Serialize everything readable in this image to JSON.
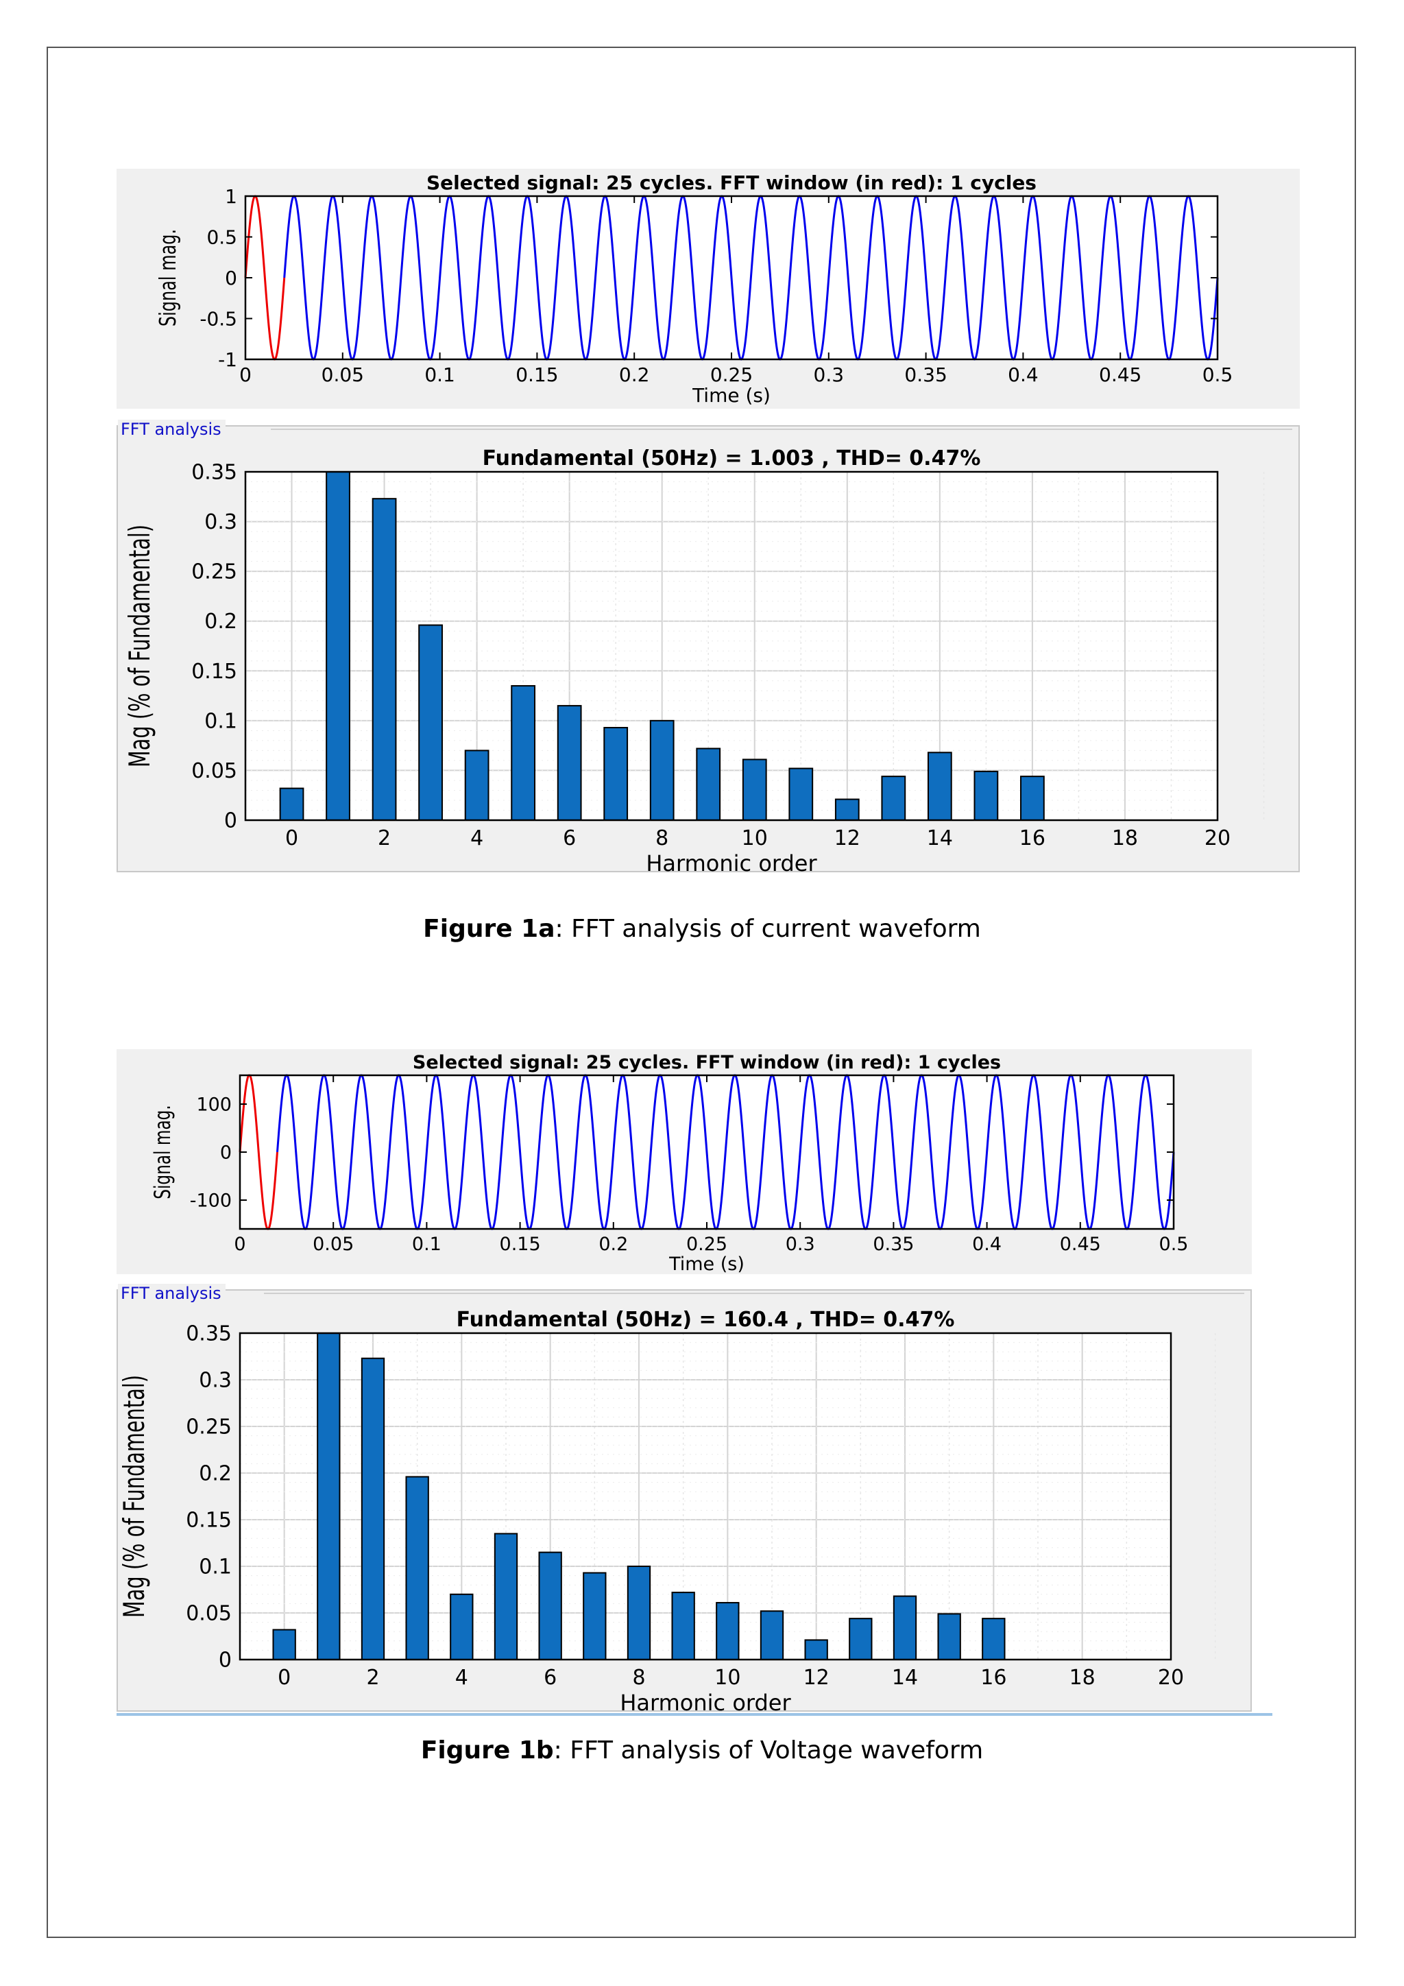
{
  "colors": {
    "signal": "#0000ee",
    "window": "#ee0000",
    "bar": "#0f6ebf",
    "bar_edge": "#000000",
    "grid": "#d4d4d4"
  },
  "figures": [
    {
      "caption_bold": "Figure 1a",
      "caption_rest": ": FFT analysis of current waveform",
      "group_label": "FFT analysis"
    },
    {
      "caption_bold": "Figure 1b",
      "caption_rest": ": FFT analysis of Voltage waveform",
      "group_label": "FFT analysis"
    }
  ],
  "chart_data": [
    {
      "type": "line",
      "title": "Selected signal: 25 cycles. FFT window (in red): 1 cycles",
      "xlabel": "Time (s)",
      "ylabel": "Signal mag.",
      "xlim": [
        0,
        0.5
      ],
      "ylim": [
        -1,
        1
      ],
      "xticks": [
        "0",
        "0.05",
        "0.1",
        "0.15",
        "0.2",
        "0.25",
        "0.3",
        "0.35",
        "0.4",
        "0.45",
        "0.5"
      ],
      "yticks": [
        "1",
        "0.5",
        "0",
        "-0.5",
        "-1"
      ],
      "ytick_values": [
        1,
        0.5,
        0,
        -0.5,
        -1
      ],
      "amplitude": 1,
      "frequency_hz": 50,
      "cycles": 25,
      "fft_window_cycles": 1,
      "series": [
        {
          "name": "Selected signal",
          "color": "#0000ee"
        },
        {
          "name": "FFT window",
          "color": "#ee0000"
        }
      ]
    },
    {
      "type": "bar",
      "title": "Fundamental (50Hz) = 1.003 , THD= 0.47%",
      "xlabel": "Harmonic order",
      "ylabel": "Mag (% of Fundamental)",
      "xlim": [
        -1,
        20
      ],
      "ylim": [
        0,
        0.35
      ],
      "xticks": [
        "0",
        "2",
        "4",
        "6",
        "8",
        "10",
        "12",
        "14",
        "16",
        "18",
        "20"
      ],
      "xtick_values": [
        0,
        2,
        4,
        6,
        8,
        10,
        12,
        14,
        16,
        18,
        20
      ],
      "yticks": [
        "0.35",
        "0.3",
        "0.25",
        "0.2",
        "0.15",
        "0.1",
        "0.05",
        "0"
      ],
      "ytick_values": [
        0.35,
        0.3,
        0.25,
        0.2,
        0.15,
        0.1,
        0.05,
        0
      ],
      "grid": true,
      "categories": [
        0,
        1,
        2,
        3,
        4,
        5,
        6,
        7,
        8,
        9,
        10,
        11,
        12,
        13,
        14,
        15,
        16
      ],
      "values": [
        0.032,
        0.35,
        0.323,
        0.196,
        0.07,
        0.135,
        0.115,
        0.093,
        0.1,
        0.072,
        0.061,
        0.052,
        0.021,
        0.044,
        0.068,
        0.049,
        0.044
      ]
    },
    {
      "type": "line",
      "title": "Selected signal: 25 cycles. FFT window (in red): 1 cycles",
      "xlabel": "Time (s)",
      "ylabel": "Signal mag.",
      "xlim": [
        0,
        0.5
      ],
      "ylim": [
        -160,
        160
      ],
      "xticks": [
        "0",
        "0.05",
        "0.1",
        "0.15",
        "0.2",
        "0.25",
        "0.3",
        "0.35",
        "0.4",
        "0.45",
        "0.5"
      ],
      "yticks": [
        "100",
        "0",
        "-100"
      ],
      "ytick_values": [
        100,
        0,
        -100
      ],
      "amplitude": 160.4,
      "frequency_hz": 50,
      "cycles": 25,
      "fft_window_cycles": 1,
      "series": [
        {
          "name": "Selected signal",
          "color": "#0000ee"
        },
        {
          "name": "FFT window",
          "color": "#ee0000"
        }
      ]
    },
    {
      "type": "bar",
      "title": "Fundamental (50Hz) = 160.4 , THD= 0.47%",
      "xlabel": "Harmonic order",
      "ylabel": "Mag (% of Fundamental)",
      "xlim": [
        -1,
        20
      ],
      "ylim": [
        0,
        0.35
      ],
      "xticks": [
        "0",
        "2",
        "4",
        "6",
        "8",
        "10",
        "12",
        "14",
        "16",
        "18",
        "20"
      ],
      "xtick_values": [
        0,
        2,
        4,
        6,
        8,
        10,
        12,
        14,
        16,
        18,
        20
      ],
      "yticks": [
        "0.35",
        "0.3",
        "0.25",
        "0.2",
        "0.15",
        "0.1",
        "0.05",
        "0"
      ],
      "ytick_values": [
        0.35,
        0.3,
        0.25,
        0.2,
        0.15,
        0.1,
        0.05,
        0
      ],
      "grid": true,
      "categories": [
        0,
        1,
        2,
        3,
        4,
        5,
        6,
        7,
        8,
        9,
        10,
        11,
        12,
        13,
        14,
        15,
        16
      ],
      "values": [
        0.032,
        0.35,
        0.323,
        0.196,
        0.07,
        0.135,
        0.115,
        0.093,
        0.1,
        0.072,
        0.061,
        0.052,
        0.021,
        0.044,
        0.068,
        0.049,
        0.044
      ]
    }
  ]
}
